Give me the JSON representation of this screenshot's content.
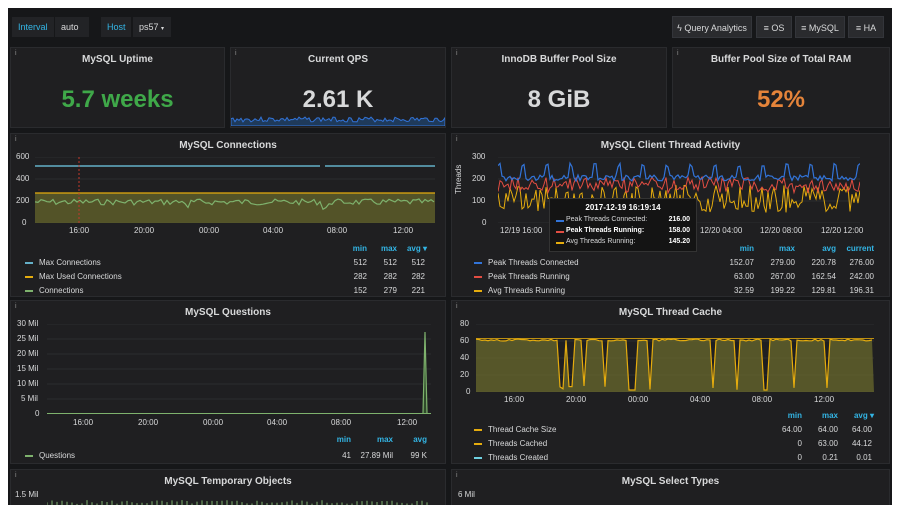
{
  "topbar": {
    "interval_label": "Interval",
    "interval_value": "auto",
    "host_label": "Host",
    "host_value": "ps57",
    "query_analytics": "Query Analytics",
    "os": "OS",
    "mysql": "MySQL",
    "ha": "HA"
  },
  "stats": {
    "uptime": {
      "title": "MySQL Uptime",
      "value": "5.7 weeks",
      "color": "#3fa849"
    },
    "qps": {
      "title": "Current QPS",
      "value": "2.61 K",
      "color": "#d8d9da"
    },
    "buffer": {
      "title": "InnoDB Buffer Pool Size",
      "value": "8 GiB",
      "color": "#d8d9da"
    },
    "ram": {
      "title": "Buffer Pool Size of Total RAM",
      "value": "52%",
      "color": "#e5843a"
    }
  },
  "connections": {
    "title": "MySQL Connections",
    "yticks": [
      "600",
      "400",
      "200",
      "0"
    ],
    "xticks": [
      "16:00",
      "20:00",
      "00:00",
      "04:00",
      "08:00",
      "12:00"
    ],
    "headers": {
      "min": "min",
      "max": "max",
      "avg": "avg ▾"
    },
    "legend": [
      {
        "name": "Max Connections",
        "color": "#64b0c8",
        "min": "512",
        "max": "512",
        "avg": "512"
      },
      {
        "name": "Max Used Connections",
        "color": "#e5ac0e",
        "min": "282",
        "max": "282",
        "avg": "282"
      },
      {
        "name": "Connections",
        "color": "#7eb26d",
        "min": "152",
        "max": "279",
        "avg": "221"
      }
    ]
  },
  "threads": {
    "title": "MySQL Client Thread Activity",
    "ylabel": "Threads",
    "yticks": [
      "300",
      "200",
      "100",
      "0"
    ],
    "xticks": [
      "12/19 16:00",
      "12/20 04:00",
      "12/20 08:00",
      "12/20 12:00"
    ],
    "headers": {
      "min": "min",
      "max": "max",
      "avg": "avg",
      "current": "current"
    },
    "legend": [
      {
        "name": "Peak Threads Connected",
        "color": "#3274d9",
        "min": "152.07",
        "max": "279.00",
        "avg": "220.78",
        "current": "276.00"
      },
      {
        "name": "Peak Threads Running",
        "color": "#e24d42",
        "min": "63.00",
        "max": "267.00",
        "avg": "162.54",
        "current": "242.00"
      },
      {
        "name": "Avg Threads Running",
        "color": "#e5ac0e",
        "min": "32.59",
        "max": "199.22",
        "avg": "129.81",
        "current": "196.31"
      }
    ],
    "tooltip": {
      "time": "2017-12-19 16:19:14",
      "rows": [
        {
          "name": "Peak Threads Connected:",
          "value": "216.00",
          "color": "#3274d9"
        },
        {
          "name": "Peak Threads Running:",
          "value": "158.00",
          "color": "#e24d42"
        },
        {
          "name": "Avg Threads Running:",
          "value": "145.20",
          "color": "#e5ac0e"
        }
      ]
    }
  },
  "questions": {
    "title": "MySQL Questions",
    "yticks": [
      "30 Mil",
      "25 Mil",
      "20 Mil",
      "15 Mil",
      "10 Mil",
      "5 Mil",
      "0"
    ],
    "xticks": [
      "16:00",
      "20:00",
      "00:00",
      "04:00",
      "08:00",
      "12:00"
    ],
    "headers": {
      "min": "min",
      "max": "max",
      "avg": "avg"
    },
    "legend": [
      {
        "name": "Questions",
        "color": "#7eb26d",
        "min": "41",
        "max": "27.89 Mil",
        "avg": "99 K"
      }
    ]
  },
  "cache": {
    "title": "MySQL Thread Cache",
    "yticks": [
      "80",
      "60",
      "40",
      "20",
      "0"
    ],
    "xticks": [
      "16:00",
      "20:00",
      "00:00",
      "04:00",
      "08:00",
      "12:00"
    ],
    "headers": {
      "min": "min",
      "max": "max",
      "avg": "avg ▾"
    },
    "legend": [
      {
        "name": "Thread Cache Size",
        "color": "#e5ac0e",
        "min": "64.00",
        "max": "64.00",
        "avg": "64.00"
      },
      {
        "name": "Threads Cached",
        "color": "#e5ac0e",
        "min": "0",
        "max": "63.00",
        "avg": "44.12"
      },
      {
        "name": "Threads Created",
        "color": "#6ed0e0",
        "min": "0",
        "max": "0.21",
        "avg": "0.01"
      }
    ]
  },
  "temp": {
    "title": "MySQL Temporary Objects",
    "ytick": "1.5 Mil"
  },
  "select": {
    "title": "MySQL Select Types",
    "ytick": "6 Mil"
  }
}
